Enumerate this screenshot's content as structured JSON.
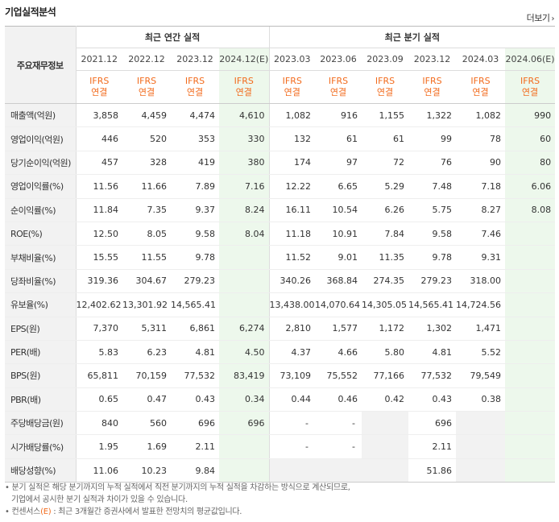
{
  "title": "기업실적분석",
  "more_label": "더보기",
  "corner_label": "주요재무정보",
  "annual_header": "최근 연간 실적",
  "quarter_header": "최근 분기 실적",
  "periods": [
    "2021.12",
    "2022.12",
    "2023.12",
    "2024.12(E)",
    "2023.03",
    "2023.06",
    "2023.09",
    "2023.12",
    "2024.03",
    "2024.06(E)"
  ],
  "basis_top": "IFRS",
  "basis_bottom": "연결",
  "rows": [
    {
      "label": "매출액(억원)",
      "values": [
        "3,858",
        "4,459",
        "4,474",
        "4,610",
        "1,082",
        "916",
        "1,155",
        "1,322",
        "1,082",
        "990"
      ]
    },
    {
      "label": "영업이익(억원)",
      "values": [
        "446",
        "520",
        "353",
        "330",
        "132",
        "61",
        "61",
        "99",
        "78",
        "60"
      ]
    },
    {
      "label": "당기순이익(억원)",
      "values": [
        "457",
        "328",
        "419",
        "380",
        "174",
        "97",
        "72",
        "76",
        "90",
        "80"
      ]
    },
    {
      "label": "영업이익률(%)",
      "values": [
        "11.56",
        "11.66",
        "7.89",
        "7.16",
        "12.22",
        "6.65",
        "5.29",
        "7.48",
        "7.18",
        "6.06"
      ]
    },
    {
      "label": "순이익률(%)",
      "values": [
        "11.84",
        "7.35",
        "9.37",
        "8.24",
        "16.11",
        "10.54",
        "6.26",
        "5.75",
        "8.27",
        "8.08"
      ]
    },
    {
      "label": "ROE(%)",
      "values": [
        "12.50",
        "8.05",
        "9.58",
        "8.04",
        "11.18",
        "10.91",
        "7.84",
        "9.58",
        "7.46",
        ""
      ]
    },
    {
      "label": "부채비율(%)",
      "values": [
        "15.55",
        "11.55",
        "9.78",
        "",
        "11.52",
        "9.01",
        "11.35",
        "9.78",
        "9.31",
        ""
      ]
    },
    {
      "label": "당좌비율(%)",
      "values": [
        "319.36",
        "304.67",
        "279.23",
        "",
        "340.26",
        "368.84",
        "274.35",
        "279.23",
        "318.00",
        ""
      ]
    },
    {
      "label": "유보율(%)",
      "values": [
        "12,402.62",
        "13,301.92",
        "14,565.41",
        "",
        "13,438.00",
        "14,070.64",
        "14,305.05",
        "14,565.41",
        "14,724.56",
        ""
      ]
    },
    {
      "label": "EPS(원)",
      "values": [
        "7,370",
        "5,311",
        "6,861",
        "6,274",
        "2,810",
        "1,577",
        "1,172",
        "1,302",
        "1,471",
        ""
      ]
    },
    {
      "label": "PER(배)",
      "values": [
        "5.83",
        "6.23",
        "4.81",
        "4.50",
        "4.37",
        "4.66",
        "5.80",
        "4.81",
        "5.52",
        ""
      ]
    },
    {
      "label": "BPS(원)",
      "values": [
        "65,811",
        "70,159",
        "77,532",
        "83,419",
        "73,109",
        "75,552",
        "77,166",
        "77,532",
        "79,549",
        ""
      ]
    },
    {
      "label": "PBR(배)",
      "values": [
        "0.65",
        "0.47",
        "0.43",
        "0.34",
        "0.44",
        "0.46",
        "0.42",
        "0.43",
        "0.38",
        ""
      ]
    },
    {
      "label": "주당배당금(원)",
      "values": [
        "840",
        "560",
        "696",
        "696",
        "-",
        "-",
        "",
        "696",
        "",
        ""
      ]
    },
    {
      "label": "시가배당률(%)",
      "values": [
        "1.95",
        "1.69",
        "2.11",
        "",
        "-",
        "-",
        "",
        "2.11",
        "",
        ""
      ]
    },
    {
      "label": "배당성향(%)",
      "values": [
        "11.06",
        "10.23",
        "9.84",
        "",
        "",
        "",
        "",
        "51.86",
        "",
        ""
      ]
    }
  ],
  "empty_shaded_cells": {
    "6": [
      3
    ],
    "7": [
      3
    ],
    "8": [
      3
    ],
    "13": [
      6,
      8
    ],
    "14": [
      3,
      6,
      8
    ],
    "15": [
      3,
      4,
      5,
      6,
      8
    ]
  },
  "notes": {
    "line1": "분기 실적은 해당 분기까지의 누적 실적에서 직전 분기까지의 누적 실적을 차감하는 방식으로 계산되므로,",
    "line2": "기업에서 공시한 분기 실적과 차이가 있을 수 있습니다.",
    "line3_prefix": "컨센서스",
    "line3_e": "(E)",
    "line3_suffix": " : 최근 3개월간 증권사에서 발표한 전망치의 평균값입니다."
  },
  "colors": {
    "accent": "#f26b1d",
    "estimate_bg": "#edf8ec",
    "label_bg": "#f2f2f2"
  }
}
